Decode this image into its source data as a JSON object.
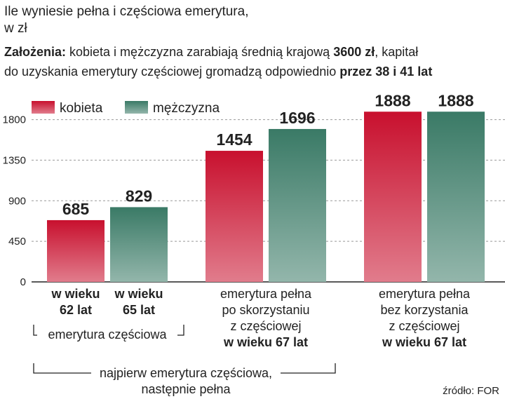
{
  "chart_data": {
    "type": "bar",
    "title": "Ile wyniesie pełna i częściowa emerytura,",
    "subtitle": "w zł",
    "note": [
      [
        {
          "text": "Założenia:",
          "bold": true
        },
        {
          "text": " kobieta i mężczyzna zarabiają średnią krajową "
        },
        {
          "text": "3600 zł",
          "bold": true
        },
        {
          "text": ", kapitał"
        }
      ],
      [
        {
          "text": "do uzyskania emerytury częściowej gromadzą odpowiednio "
        },
        {
          "text": "przez 38 i 41 lat",
          "bold": true
        }
      ]
    ],
    "categories": [
      [
        "emerytura częściowa"
      ],
      [
        "emerytura pełna",
        "po skorzystaniu",
        "z częściowej",
        "w wieku 67 lat"
      ],
      [
        "emerytura pełna",
        "bez korzystania",
        "z częściowej",
        "w wieku 67 lat"
      ]
    ],
    "bar_labels": [
      [
        "w wieku",
        "62 lat"
      ],
      [
        "w wieku",
        "65 lat"
      ]
    ],
    "bracket_label": [
      "najpierw emerytura częściowa,",
      "następnie pełna"
    ],
    "series": [
      {
        "name": "kobieta",
        "color": "#c8102e",
        "values": [
          685,
          1454,
          1888
        ]
      },
      {
        "name": "mężczyzna",
        "color": "#3a7a66",
        "values": [
          829,
          1696,
          1888
        ]
      }
    ],
    "ylim": [
      0,
      2100
    ],
    "yticks": [
      0,
      450,
      900,
      1350,
      1800
    ],
    "grid": true,
    "legend": "top-left",
    "source": "źródło: FOR"
  }
}
